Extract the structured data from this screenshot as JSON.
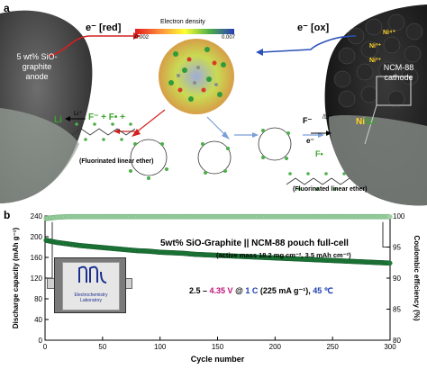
{
  "panel_a": {
    "label": "a",
    "anode_label_lines": [
      "5 wt% SiO-",
      "graphite",
      "anode"
    ],
    "cathode_label_lines": [
      "NCM-88",
      "cathode"
    ],
    "e_red": "e⁻ [red]",
    "e_ox": "e⁻ [ox]",
    "density_title": "Electron density",
    "density_min": "-0.002",
    "density_max": "0.007",
    "ni_labels": [
      "Ni⁴⁺",
      "Ni³⁺",
      "Ni²⁺"
    ],
    "li_plus_label": "Li⁺",
    "li_left": "Li",
    "f_minus_equation": "F⁻ + F• +",
    "left_caption": "(Fluorinated linear ether)",
    "right_caption": "(Fluorinated linear ether)",
    "f_minus_right": "F⁻",
    "li_slash": "/Li⁺",
    "ni_li": "Ni",
    "li_after_slash": "/Li",
    "f_dot": "F•",
    "e_minus": "e⁻"
  },
  "panel_b": {
    "label": "b",
    "title": "5wt% SiO-Graphite || NCM-88 pouch full-cell",
    "subtitle": "(active mass 18.2 mg cm⁻², 3.5 mAh cm⁻²)",
    "conditions_parts": [
      "2.5 – ",
      "4.35 V",
      " @ ",
      "1 C",
      " (225 mA g⁻¹), ",
      "45 ℃"
    ],
    "pouch_logo_text": "Electrochemistry Laboratory"
  },
  "chart_data": {
    "type": "scatter",
    "title": "5wt% SiO-Graphite || NCM-88 pouch full-cell",
    "xlabel": "Cycle number",
    "ylabel": "Discharge capacity (mAh g⁻¹)",
    "y2label": "Coulombic efficiency (%)",
    "xlim": [
      0,
      300
    ],
    "ylim": [
      0,
      240
    ],
    "y2lim": [
      80,
      100
    ],
    "xticks": [
      0,
      50,
      100,
      150,
      200,
      250,
      300
    ],
    "yticks": [
      0,
      40,
      80,
      120,
      160,
      200,
      240
    ],
    "y2ticks": [
      80,
      85,
      90,
      95,
      100
    ],
    "series": [
      {
        "axis": "left",
        "color": "#1e7a3a",
        "x": [
          1,
          10,
          20,
          30,
          40,
          50,
          60,
          70,
          80,
          90,
          100,
          110,
          120,
          130,
          140,
          150,
          160,
          170,
          180,
          190,
          200,
          210,
          220,
          230,
          240,
          250,
          260,
          270,
          280,
          290,
          300
        ],
        "y": [
          193,
          189,
          186,
          183,
          181,
          179,
          177,
          175,
          173,
          172,
          170,
          169,
          168,
          166,
          165,
          164,
          163,
          162,
          161,
          160,
          159,
          158,
          157,
          156,
          155,
          154,
          153,
          152,
          151,
          150,
          149
        ]
      },
      {
        "axis": "right",
        "color": "#9fd3a6",
        "x": [
          1,
          10,
          20,
          30,
          40,
          50,
          60,
          70,
          80,
          90,
          100,
          110,
          120,
          130,
          140,
          150,
          160,
          170,
          180,
          190,
          200,
          210,
          220,
          230,
          240,
          250,
          260,
          270,
          280,
          290,
          300
        ],
        "y": [
          99.6,
          99.8,
          99.9,
          99.9,
          99.9,
          99.9,
          99.9,
          99.9,
          99.9,
          99.9,
          99.9,
          99.9,
          99.9,
          99.9,
          99.9,
          99.9,
          99.9,
          99.9,
          99.9,
          99.9,
          99.9,
          99.9,
          99.9,
          99.9,
          99.9,
          99.9,
          99.9,
          99.9,
          99.9,
          99.9,
          99.9
        ]
      }
    ],
    "grid": false
  }
}
